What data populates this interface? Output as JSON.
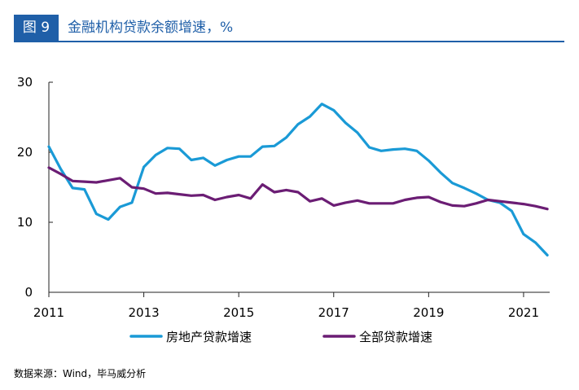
{
  "figure": {
    "badge": "图 9",
    "title": "金融机构贷款余额增速，%",
    "source": "数据来源：Wind，毕马威分析",
    "accent_color": "#1f5fa8"
  },
  "chart_data": {
    "type": "line",
    "title": "金融机构贷款余额增速，%",
    "xlabel": "",
    "ylabel": "",
    "xlim": [
      2011.0,
      2021.55
    ],
    "ylim": [
      0,
      30
    ],
    "x_ticks": [
      2011,
      2013,
      2015,
      2017,
      2019,
      2021
    ],
    "y_ticks": [
      0,
      10,
      20,
      30
    ],
    "grid": false,
    "legend_position": "bottom",
    "series": [
      {
        "name": "房地产贷款增速",
        "color": "#1a9ad6",
        "x": [
          2011.0,
          2011.25,
          2011.5,
          2011.75,
          2012.0,
          2012.25,
          2012.5,
          2012.75,
          2013.0,
          2013.25,
          2013.5,
          2013.75,
          2014.0,
          2014.25,
          2014.5,
          2014.75,
          2015.0,
          2015.25,
          2015.5,
          2015.75,
          2016.0,
          2016.25,
          2016.5,
          2016.75,
          2017.0,
          2017.25,
          2017.5,
          2017.75,
          2018.0,
          2018.25,
          2018.5,
          2018.75,
          2019.0,
          2019.25,
          2019.5,
          2019.75,
          2020.0,
          2020.25,
          2020.5,
          2020.75,
          2021.0,
          2021.25,
          2021.5
        ],
        "y": [
          20.8,
          17.6,
          14.9,
          14.7,
          11.2,
          10.4,
          12.2,
          12.8,
          17.9,
          19.6,
          20.6,
          20.5,
          18.9,
          19.2,
          18.1,
          18.9,
          19.4,
          19.4,
          20.8,
          20.9,
          22.1,
          24.0,
          25.1,
          26.9,
          26.0,
          24.2,
          22.8,
          20.7,
          20.2,
          20.4,
          20.5,
          20.2,
          18.8,
          17.1,
          15.6,
          14.9,
          14.1,
          13.2,
          12.8,
          11.6,
          8.3,
          7.1,
          5.3
        ]
      },
      {
        "name": "全部贷款增速",
        "color": "#6b1d74",
        "x": [
          2011.0,
          2011.25,
          2011.5,
          2011.75,
          2012.0,
          2012.25,
          2012.5,
          2012.75,
          2013.0,
          2013.25,
          2013.5,
          2013.75,
          2014.0,
          2014.25,
          2014.5,
          2014.75,
          2015.0,
          2015.25,
          2015.5,
          2015.75,
          2016.0,
          2016.25,
          2016.5,
          2016.75,
          2017.0,
          2017.25,
          2017.5,
          2017.75,
          2018.0,
          2018.25,
          2018.5,
          2018.75,
          2019.0,
          2019.25,
          2019.5,
          2019.75,
          2020.0,
          2020.25,
          2020.5,
          2020.75,
          2021.0,
          2021.25,
          2021.5
        ],
        "y": [
          17.8,
          16.9,
          15.9,
          15.8,
          15.7,
          16.0,
          16.3,
          15.0,
          14.8,
          14.1,
          14.2,
          14.0,
          13.8,
          13.9,
          13.2,
          13.6,
          13.9,
          13.4,
          15.4,
          14.3,
          14.6,
          14.3,
          13.0,
          13.4,
          12.4,
          12.8,
          13.1,
          12.7,
          12.7,
          12.7,
          13.2,
          13.5,
          13.6,
          12.9,
          12.4,
          12.3,
          12.7,
          13.2,
          13.0,
          12.8,
          12.6,
          12.3,
          11.9
        ]
      }
    ]
  }
}
